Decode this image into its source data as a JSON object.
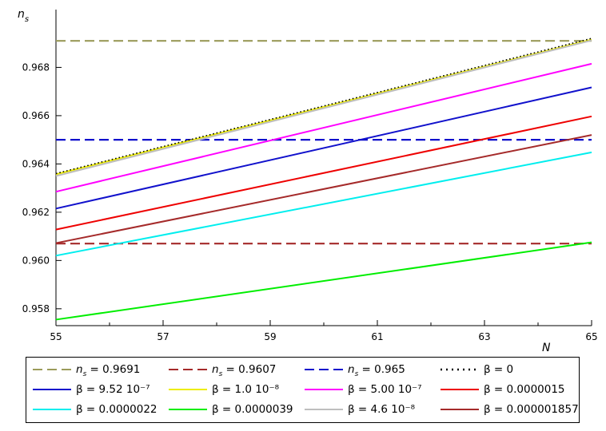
{
  "chart_data": {
    "type": "line",
    "ylabel": "n_s",
    "ylabel_main": "n",
    "ylabel_sub": "s",
    "xlabel": "N",
    "xlim": [
      55,
      65
    ],
    "ylim": [
      0.9573,
      0.9698
    ],
    "x_ticks": [
      55,
      57,
      59,
      61,
      63,
      65
    ],
    "x_tick_labels": [
      "55",
      "57",
      "59",
      "61",
      "63",
      "65"
    ],
    "minor_x_ticks": [
      56,
      58,
      60,
      62,
      64
    ],
    "y_ticks": [
      0.958,
      0.96,
      0.962,
      0.964,
      0.966,
      0.968
    ],
    "y_tick_labels": [
      "0.958",
      "0.960",
      "0.962",
      "0.964",
      "0.966",
      "0.968"
    ],
    "grid": false,
    "legend_position": "bottom",
    "x": [
      55,
      65
    ],
    "series": [
      {
        "name": "n_s = 0.9691",
        "legend_prefix": "n",
        "legend_sub": "s",
        "legend_value": " = 0.9691",
        "values": [
          0.9691,
          0.9691
        ],
        "color": "#9b9b5a",
        "dash": "12,6",
        "width": 2.2
      },
      {
        "name": "n_s = 0.9607",
        "legend_prefix": "n",
        "legend_sub": "s",
        "legend_value": " = 0.9607",
        "values": [
          0.9607,
          0.9607
        ],
        "color": "#a52a2a",
        "dash": "12,6",
        "width": 2.2
      },
      {
        "name": "n_s = 0.965",
        "legend_prefix": "n",
        "legend_sub": "s",
        "legend_value": " = 0.965",
        "values": [
          0.965,
          0.965
        ],
        "color": "#1010cc",
        "dash": "12,6",
        "width": 2.2
      },
      {
        "name": "β = 0",
        "values": [
          0.9636,
          0.9692
        ],
        "color": "#000000",
        "dash": "1.5,3",
        "width": 1.5
      },
      {
        "name": "β = 9.52 10⁻⁷",
        "values": [
          0.96215,
          0.96717
        ],
        "color": "#1111cc",
        "dash": "",
        "width": 2
      },
      {
        "name": "β = 1.0 10⁻⁸",
        "values": [
          0.96357,
          0.96915
        ],
        "color": "#eded00",
        "dash": "",
        "width": 2
      },
      {
        "name": "β = 5.00 10⁻⁷",
        "values": [
          0.96285,
          0.96815
        ],
        "color": "#ff00ff",
        "dash": "",
        "width": 2
      },
      {
        "name": "β = 0.0000015",
        "values": [
          0.96128,
          0.96597
        ],
        "color": "#ee0000",
        "dash": "",
        "width": 2
      },
      {
        "name": "β = 0.0000022",
        "values": [
          0.9602,
          0.96448
        ],
        "color": "#00eeee",
        "dash": "",
        "width": 2
      },
      {
        "name": "β = 0.0000039",
        "values": [
          0.95755,
          0.96075
        ],
        "color": "#00ee00",
        "dash": "",
        "width": 2
      },
      {
        "name": "β = 4.6 10⁻⁸",
        "values": [
          0.9635,
          0.96912
        ],
        "color": "#bebebe",
        "dash": "",
        "width": 2
      },
      {
        "name": "β = 0.000001857",
        "values": [
          0.96072,
          0.9652
        ],
        "color": "#a52a2a",
        "dash": "",
        "width": 2
      }
    ]
  }
}
